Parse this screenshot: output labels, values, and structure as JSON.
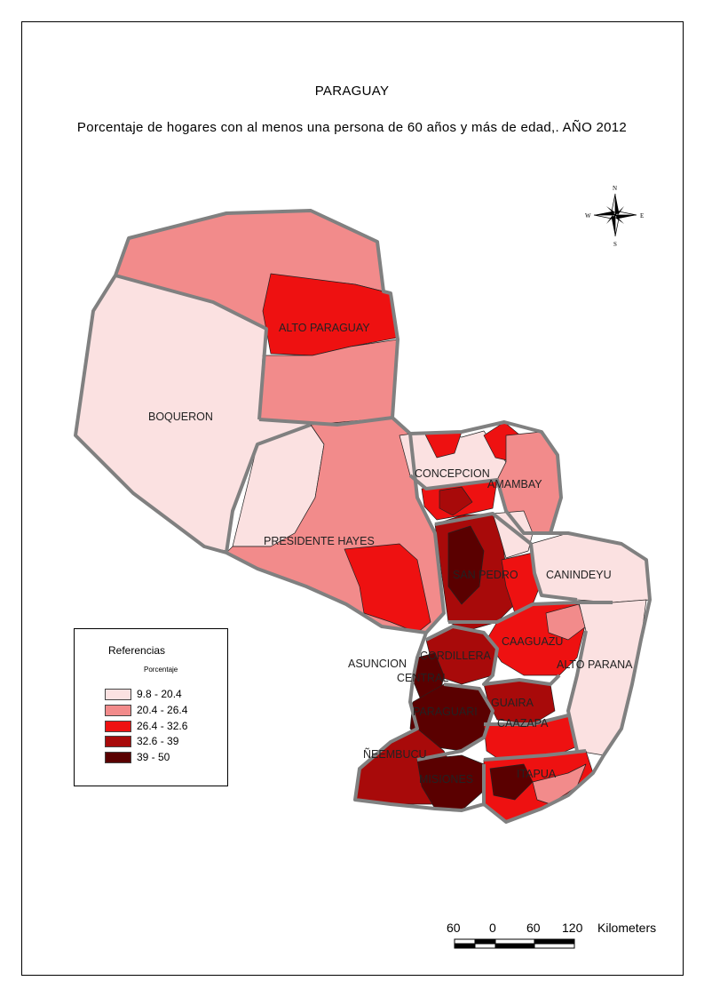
{
  "title": "PARAGUAY",
  "subtitle": "Porcentaje de hogares con al menos una persona de 60 años y más de edad,. AÑO 2012",
  "legend": {
    "title": "Referencias",
    "subtitle": "Porcentaje",
    "classes": [
      {
        "label": "9.8 - 20.4",
        "color": "#fbe1e1"
      },
      {
        "label": "20.4 - 26.4",
        "color": "#f28b8b"
      },
      {
        "label": "26.4 - 32.6",
        "color": "#ee1111"
      },
      {
        "label": "32.6 - 39",
        "color": "#a80a0a"
      },
      {
        "label": "39 - 50",
        "color": "#5a0000"
      }
    ]
  },
  "regions": {
    "boqueron": "BOQUERON",
    "alto_paraguay": "ALTO PARAGUAY",
    "presidente_hayes": "PRESIDENTE HAYES",
    "concepcion": "CONCEPCION",
    "amambay": "AMAMBAY",
    "san_pedro": "SAN PEDRO",
    "canindeyu": "CANINDEYU",
    "caaguazu": "CAAGUAZU",
    "cordillera": "CORDILLERA",
    "asuncion": "ASUNCION",
    "central": "CENTRAL",
    "alto_parana": "ALTO PARANA",
    "paraguari": "PARAGUARI",
    "guaira": "GUAIRA",
    "caazapa": "CAAZAPA",
    "neembucu": "ÑEEMBUCU",
    "misiones": "MISIONES",
    "itapua": "ITAPUA"
  },
  "compass": {
    "n": "N",
    "s": "S",
    "e": "E",
    "w": "W"
  },
  "scalebar": {
    "ticks": [
      "60",
      "0",
      "60",
      "120"
    ],
    "unit": "Kilometers"
  }
}
